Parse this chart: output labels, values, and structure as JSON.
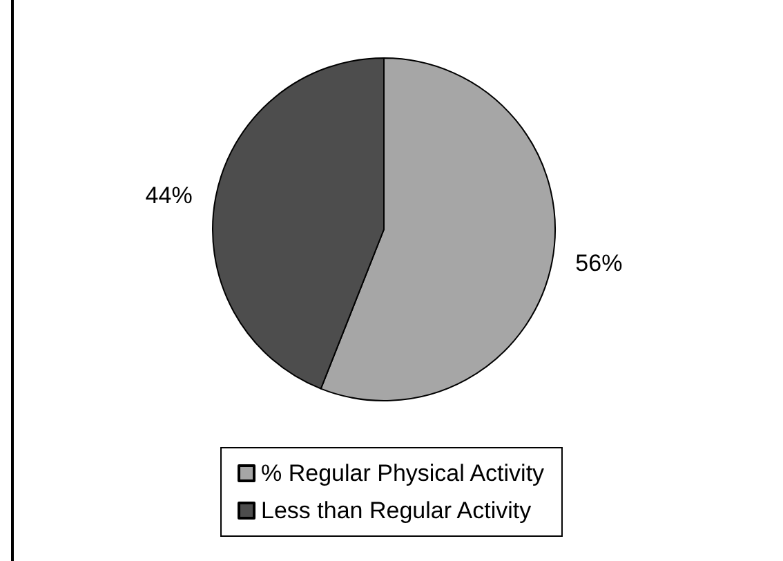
{
  "chart_data": {
    "type": "pie",
    "categories": [
      "% Regular Physical Activity",
      "Less than Regular Activity"
    ],
    "values": [
      56,
      44
    ],
    "colors": [
      "#a6a6a6",
      "#4d4d4d"
    ],
    "value_labels": [
      "56%",
      "44%"
    ],
    "legend": "bottom"
  }
}
